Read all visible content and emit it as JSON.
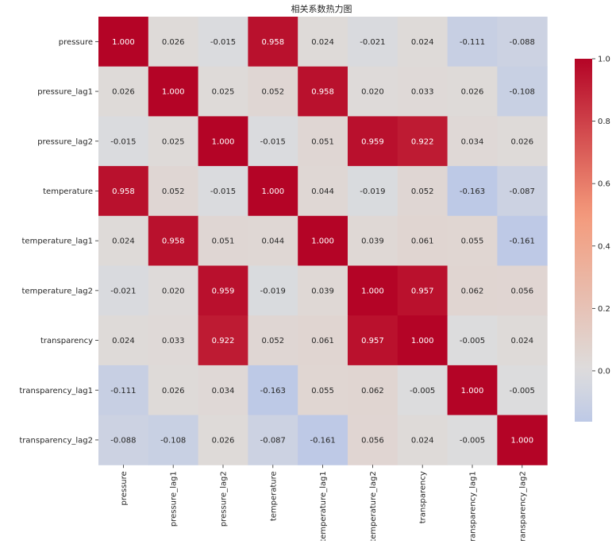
{
  "chart_data": {
    "type": "heatmap",
    "title": "相关系数热力图",
    "variables": [
      "pressure",
      "pressure_lag1",
      "pressure_lag2",
      "temperature",
      "temperature_lag1",
      "temperature_lag2",
      "transparency",
      "transparency_lag1",
      "transparency_lag2"
    ],
    "matrix": [
      [
        "1.000",
        "0.026",
        "-0.015",
        "0.958",
        "0.024",
        "-0.021",
        "0.024",
        "-0.111",
        "-0.088"
      ],
      [
        "0.026",
        "1.000",
        "0.025",
        "0.052",
        "0.958",
        "0.020",
        "0.033",
        "0.026",
        "-0.108"
      ],
      [
        "-0.015",
        "0.025",
        "1.000",
        "-0.015",
        "0.051",
        "0.959",
        "0.922",
        "0.034",
        "0.026"
      ],
      [
        "0.958",
        "0.052",
        "-0.015",
        "1.000",
        "0.044",
        "-0.019",
        "0.052",
        "-0.163",
        "-0.087"
      ],
      [
        "0.024",
        "0.958",
        "0.051",
        "0.044",
        "1.000",
        "0.039",
        "0.061",
        "0.055",
        "-0.161"
      ],
      [
        "-0.021",
        "0.020",
        "0.959",
        "-0.019",
        "0.039",
        "1.000",
        "0.957",
        "0.062",
        "0.056"
      ],
      [
        "0.024",
        "0.033",
        "0.922",
        "0.052",
        "0.061",
        "0.957",
        "1.000",
        "-0.005",
        "0.024"
      ],
      [
        "-0.111",
        "0.026",
        "0.034",
        "-0.163",
        "0.055",
        "0.062",
        "-0.005",
        "1.000",
        "-0.005"
      ],
      [
        "-0.088",
        "-0.108",
        "0.026",
        "-0.087",
        "-0.161",
        "0.056",
        "0.024",
        "-0.005",
        "1.000"
      ]
    ],
    "colormap": "coolwarm",
    "center": 0,
    "colorbar": {
      "min": -0.163,
      "max": 1.0,
      "ticks": [
        "0.0",
        "0.2",
        "0.4",
        "0.6",
        "0.8",
        "1.0"
      ]
    },
    "annotation_format": "3 decimals"
  }
}
